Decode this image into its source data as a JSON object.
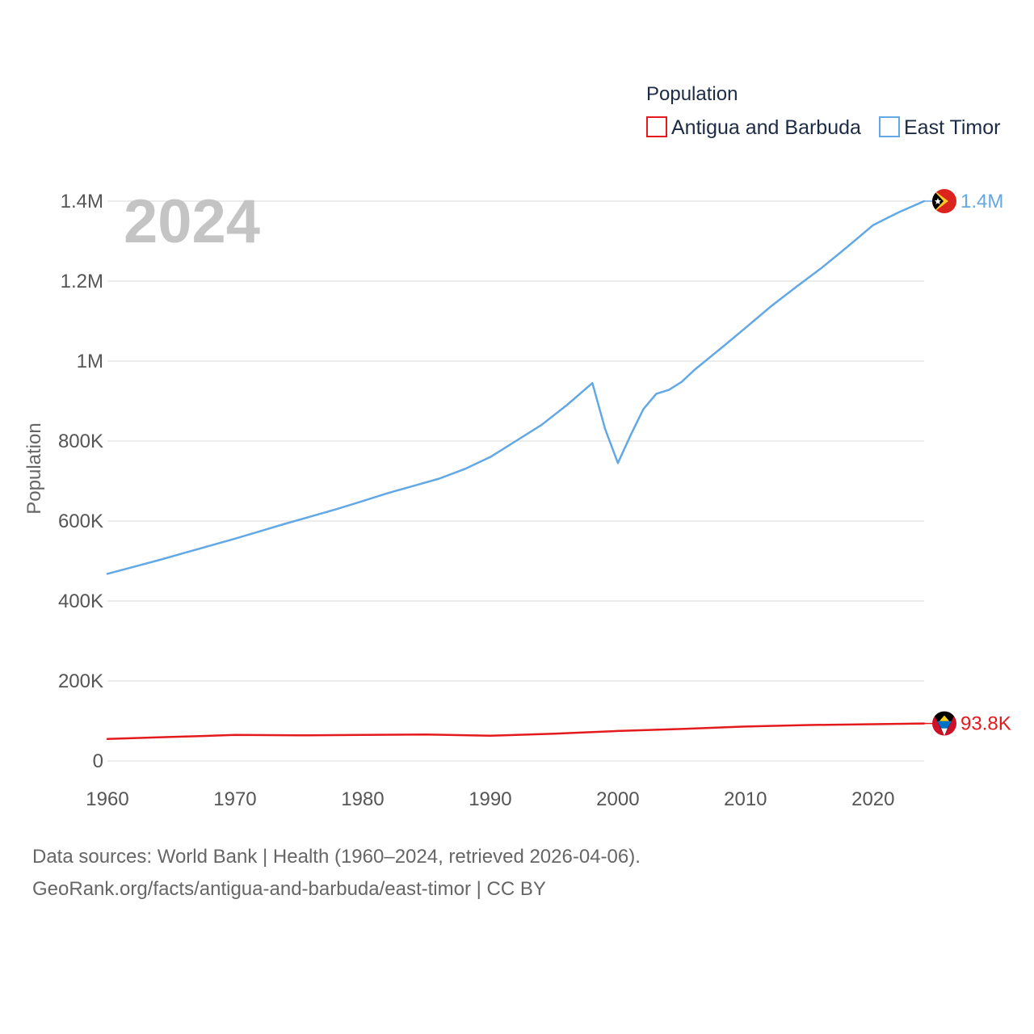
{
  "chart_data": {
    "type": "line",
    "ylabel": "Population",
    "xlabel": "",
    "xlim": [
      1960,
      2024
    ],
    "ylim": [
      0,
      1400000
    ],
    "grid": true,
    "legend_title": "Population",
    "legend_position": "top-right",
    "current_year": "2024",
    "x_ticks": [
      1960,
      1970,
      1980,
      1990,
      2000,
      2010,
      2020
    ],
    "x_tick_labels": [
      "1960",
      "1970",
      "1980",
      "1990",
      "2000",
      "2010",
      "2020"
    ],
    "y_ticks": [
      0,
      200000,
      400000,
      600000,
      800000,
      1000000,
      1200000,
      1400000
    ],
    "y_tick_labels": [
      "0",
      "200K",
      "400K",
      "600K",
      "800K",
      "1M",
      "1.2M",
      "1.4M"
    ],
    "series": [
      {
        "name": "Antigua and Barbuda",
        "color": "#e31a1c",
        "end_label": "93.8K",
        "flag": "antigua-flag",
        "x": [
          1960,
          1965,
          1970,
          1975,
          1980,
          1985,
          1990,
          1995,
          2000,
          2005,
          2010,
          2015,
          2020,
          2024
        ],
        "y": [
          55000,
          60000,
          65000,
          64000,
          65000,
          66000,
          63000,
          68000,
          75000,
          80000,
          86000,
          90000,
          92000,
          93800
        ]
      },
      {
        "name": "East Timor",
        "color": "#62a8e5",
        "end_label": "1.4M",
        "flag": "east-timor-flag",
        "x": [
          1960,
          1962,
          1964,
          1966,
          1968,
          1970,
          1972,
          1974,
          1976,
          1978,
          1980,
          1982,
          1984,
          1986,
          1988,
          1990,
          1991,
          1992,
          1994,
          1996,
          1998,
          1999,
          2000,
          2001,
          2002,
          2003,
          2004,
          2005,
          2006,
          2008,
          2010,
          2012,
          2014,
          2016,
          2018,
          2020,
          2021,
          2022,
          2024
        ],
        "y": [
          468000,
          485000,
          502000,
          520000,
          538000,
          556000,
          575000,
          594000,
          612000,
          630000,
          650000,
          670000,
          688000,
          706000,
          730000,
          760000,
          780000,
          800000,
          840000,
          890000,
          945000,
          830000,
          745000,
          815000,
          880000,
          918000,
          928000,
          948000,
          978000,
          1030000,
          1083000,
          1137000,
          1186000,
          1234000,
          1286000,
          1340000,
          1356000,
          1372000,
          1400000
        ]
      }
    ]
  },
  "source": {
    "line1": "Data sources: World Bank | Health (1960–2024, retrieved 2026-04-06).",
    "line2": "GeoRank.org/facts/antigua-and-barbuda/east-timor | CC BY"
  }
}
